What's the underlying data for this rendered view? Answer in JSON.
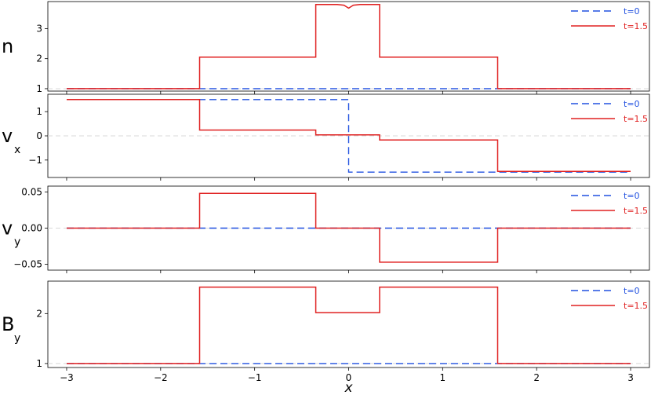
{
  "chart_data": [
    {
      "type": "line",
      "panel_label": "n",
      "label_subscript": "",
      "xlim": [
        -3.2,
        3.2
      ],
      "ylim": [
        0.92,
        3.9
      ],
      "yticks": [
        1,
        2,
        3
      ],
      "ytick_labels": [
        "1",
        "2",
        "3"
      ],
      "show_xtick_labels": false,
      "zero_reference": false,
      "reference_line_y": 1,
      "legend": {
        "placement": "top-right",
        "entries": [
          "t=0",
          "t=1.5"
        ]
      },
      "series": [
        {
          "name": "t=0",
          "color": "#2050e0",
          "style": "dashed",
          "x": [
            -3,
            3
          ],
          "y": [
            1,
            1
          ]
        },
        {
          "name": "t=1.5",
          "color": "#e02020",
          "style": "solid",
          "x": [
            -3,
            -1.585,
            -1.585,
            -0.35,
            -0.35,
            -0.12,
            -0.05,
            0.0,
            0.05,
            0.12,
            0.33,
            0.33,
            1.585,
            1.585,
            3
          ],
          "y": [
            1,
            1,
            2.05,
            2.05,
            3.8,
            3.8,
            3.78,
            3.68,
            3.78,
            3.8,
            3.8,
            2.05,
            2.05,
            1,
            1
          ]
        }
      ]
    },
    {
      "type": "line",
      "panel_label": "v",
      "label_subscript": "x",
      "xlim": [
        -3.2,
        3.2
      ],
      "ylim": [
        -1.72,
        1.72
      ],
      "yticks": [
        -1,
        0,
        1
      ],
      "ytick_labels": [
        "−1",
        "0",
        "1"
      ],
      "show_xtick_labels": false,
      "zero_reference": true,
      "reference_line_y": 0,
      "legend": {
        "placement": "top-right",
        "entries": [
          "t=0",
          "t=1.5"
        ]
      },
      "series": [
        {
          "name": "t=0",
          "color": "#2050e0",
          "style": "dashed",
          "x": [
            -3,
            0,
            0,
            3
          ],
          "y": [
            1.5,
            1.5,
            -1.5,
            -1.5
          ]
        },
        {
          "name": "t=1.5",
          "color": "#e02020",
          "style": "solid",
          "x": [
            -3,
            -1.585,
            -1.585,
            -0.35,
            -0.35,
            0.33,
            0.33,
            1.585,
            1.585,
            3
          ],
          "y": [
            1.5,
            1.5,
            0.24,
            0.24,
            0.04,
            0.04,
            -0.17,
            -0.17,
            -1.47,
            -1.47
          ]
        }
      ]
    },
    {
      "type": "line",
      "panel_label": "v",
      "label_subscript": "y",
      "xlim": [
        -3.2,
        3.2
      ],
      "ylim": [
        -0.058,
        0.058
      ],
      "yticks": [
        -0.05,
        0,
        0.05
      ],
      "ytick_labels": [
        "−0.05",
        "0.00",
        "0.05"
      ],
      "show_xtick_labels": false,
      "zero_reference": true,
      "reference_line_y": 0,
      "legend": {
        "placement": "top-right",
        "entries": [
          "t=0",
          "t=1.5"
        ]
      },
      "series": [
        {
          "name": "t=0",
          "color": "#2050e0",
          "style": "dashed",
          "x": [
            -3,
            3
          ],
          "y": [
            0,
            0
          ]
        },
        {
          "name": "t=1.5",
          "color": "#e02020",
          "style": "solid",
          "x": [
            -3,
            -1.585,
            -1.585,
            -0.35,
            -0.35,
            0.33,
            0.33,
            1.585,
            1.585,
            3
          ],
          "y": [
            0,
            0,
            0.048,
            0.048,
            0,
            0,
            -0.047,
            -0.047,
            0,
            0
          ]
        }
      ]
    },
    {
      "type": "line",
      "panel_label": "B",
      "label_subscript": "y",
      "xlim": [
        -3.2,
        3.2
      ],
      "ylim": [
        0.92,
        2.65
      ],
      "yticks": [
        1,
        2
      ],
      "ytick_labels": [
        "1",
        "2"
      ],
      "show_xtick_labels": true,
      "xticks": [
        -3,
        -2,
        -1,
        0,
        1,
        2,
        3
      ],
      "xtick_labels": [
        "−3",
        "−2",
        "−1",
        "0",
        "1",
        "2",
        "3"
      ],
      "xlabel": "x",
      "zero_reference": false,
      "reference_line_y": 1,
      "legend": {
        "placement": "top-right",
        "entries": [
          "t=0",
          "t=1.5"
        ]
      },
      "series": [
        {
          "name": "t=0",
          "color": "#2050e0",
          "style": "dashed",
          "x": [
            -3,
            3
          ],
          "y": [
            1,
            1
          ]
        },
        {
          "name": "t=1.5",
          "color": "#e02020",
          "style": "solid",
          "x": [
            -3,
            -1.585,
            -1.585,
            -0.35,
            -0.35,
            0.33,
            0.33,
            1.585,
            1.585,
            3
          ],
          "y": [
            1,
            1,
            2.53,
            2.53,
            2.02,
            2.02,
            2.53,
            2.53,
            1,
            1
          ]
        }
      ]
    }
  ]
}
